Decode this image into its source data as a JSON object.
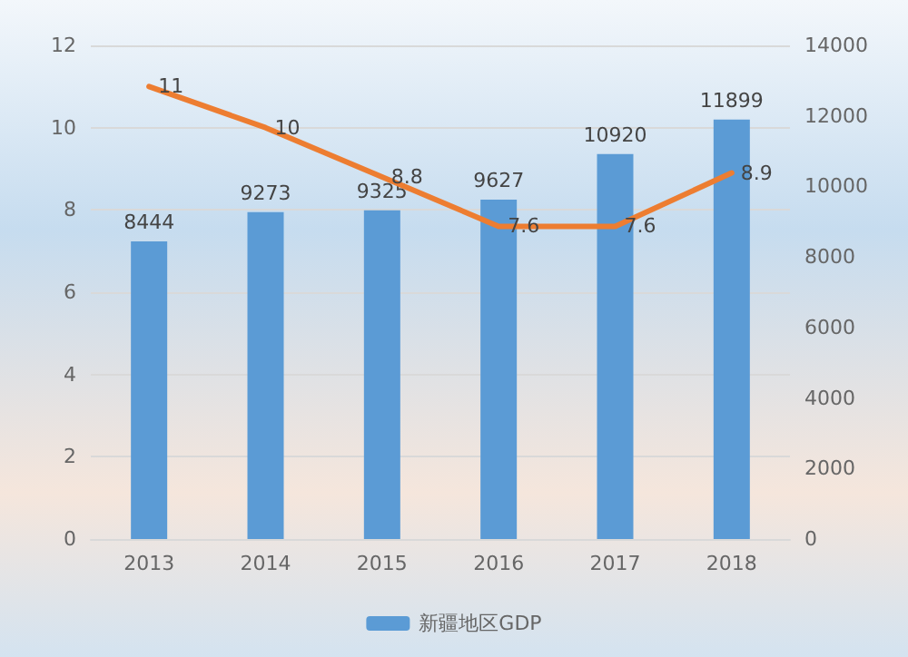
{
  "chart_data": {
    "type": "bar",
    "categories": [
      "2013",
      "2014",
      "2015",
      "2016",
      "2017",
      "2018"
    ],
    "series": [
      {
        "name": "新疆地区GDP",
        "axis": "y2",
        "color": "#5b9bd5",
        "values": [
          8444,
          9273,
          9325,
          9627,
          10920,
          11899
        ]
      },
      {
        "type": "line",
        "color": "#ed7d31",
        "values": [
          11,
          10,
          8.8,
          7.6,
          7.6,
          8.9
        ]
      }
    ],
    "ylim": [
      0,
      12
    ],
    "yticks": [
      0,
      2,
      4,
      6,
      8,
      10,
      12
    ],
    "y2lim": [
      0,
      14000
    ],
    "y2ticks": [
      0,
      2000,
      4000,
      6000,
      8000,
      10000,
      12000,
      14000
    ],
    "data_labels": true,
    "grid": "y",
    "legend": "bottom",
    "marker": "none"
  }
}
